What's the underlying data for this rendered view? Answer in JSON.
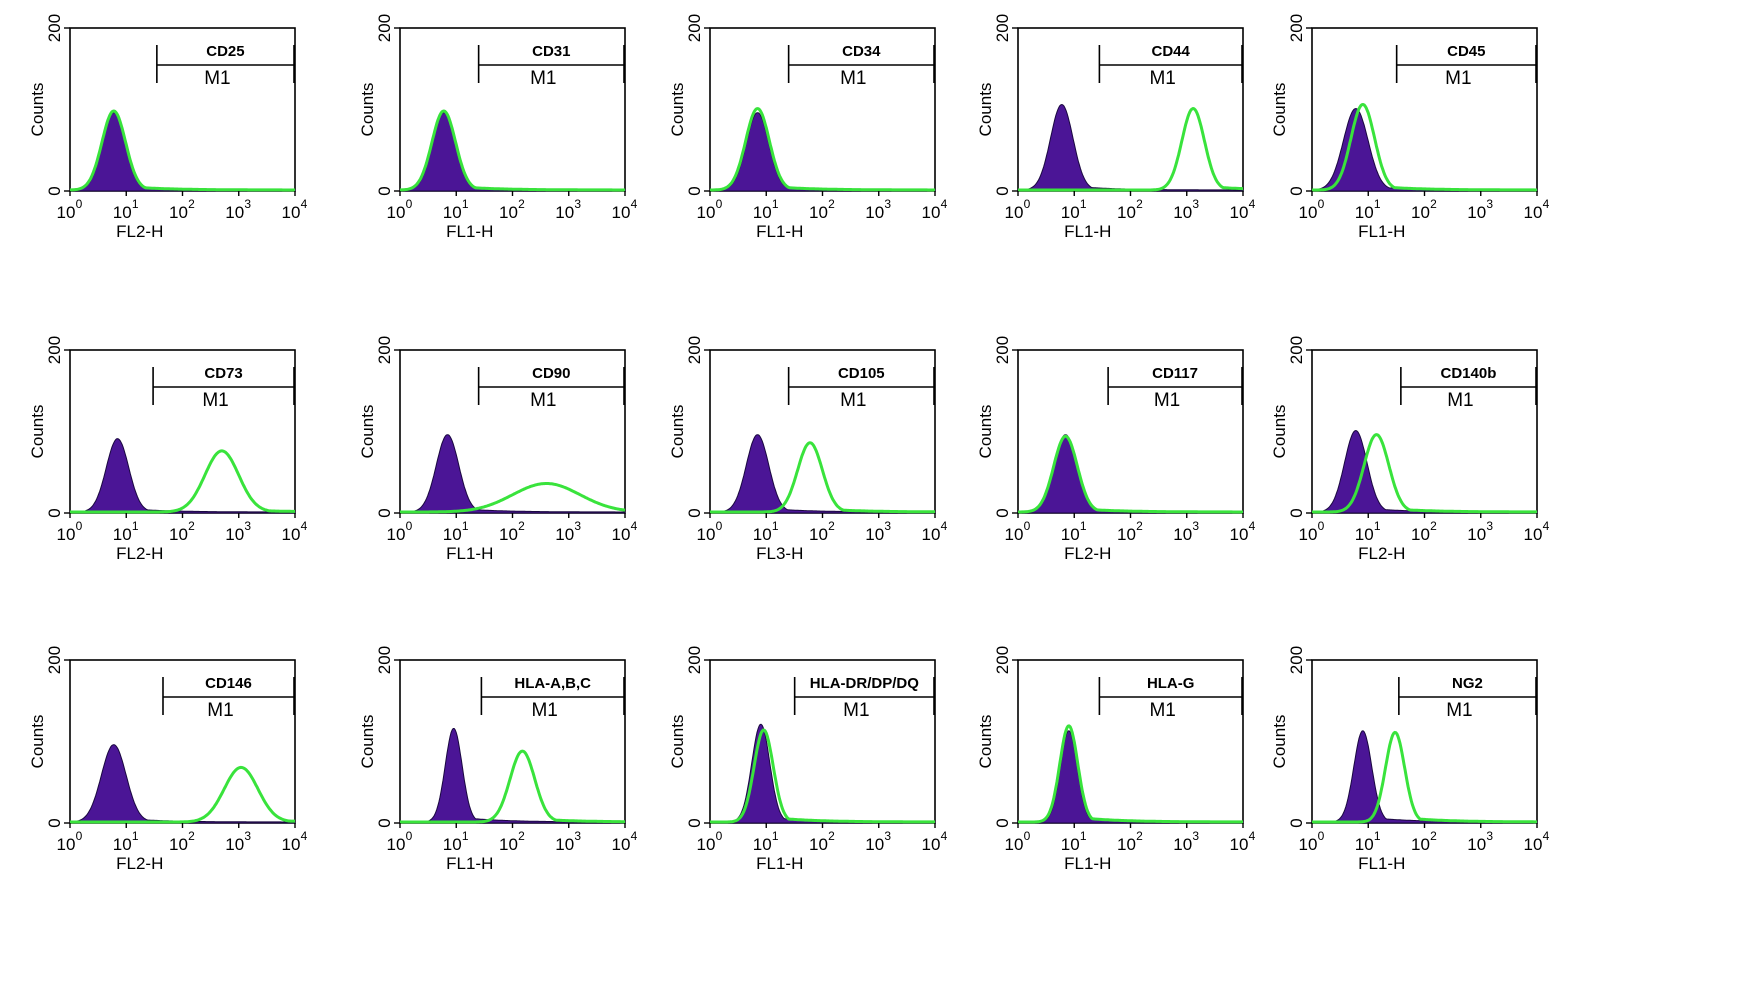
{
  "chart_data": [
    {
      "type": "histogram",
      "marker": "CD25",
      "gate": "M1",
      "xlabel": "FL2-H",
      "ylabel": "Counts",
      "xscale": "log",
      "xlim": [
        1,
        10000
      ],
      "ylim": [
        0,
        200
      ],
      "yticks": [
        "0",
        "200"
      ],
      "xticks": [
        "10",
        "10",
        "10",
        "10",
        "10"
      ],
      "xtick_exponents": [
        "0",
        "1",
        "2",
        "3",
        "4"
      ],
      "gate_range": [
        35,
        10000
      ],
      "control": {
        "peak_x": 6,
        "peak_count": 95,
        "log_sd": 0.2
      },
      "stained": {
        "peak_x": 6,
        "peak_count": 97,
        "log_sd": 0.21,
        "shoulder_x": null,
        "shoulder_count": 0
      },
      "colors": {
        "control": "#4b1596",
        "stained": "#39e33c"
      }
    },
    {
      "type": "histogram",
      "marker": "CD31",
      "gate": "M1",
      "xlabel": "FL1-H",
      "ylabel": "Counts",
      "xscale": "log",
      "xlim": [
        1,
        10000
      ],
      "ylim": [
        0,
        200
      ],
      "yticks": [
        "0",
        "200"
      ],
      "xticks": [
        "10",
        "10",
        "10",
        "10",
        "10"
      ],
      "xtick_exponents": [
        "0",
        "1",
        "2",
        "3",
        "4"
      ],
      "gate_range": [
        25,
        10000
      ],
      "control": {
        "peak_x": 6,
        "peak_count": 95,
        "log_sd": 0.2
      },
      "stained": {
        "peak_x": 6,
        "peak_count": 97,
        "log_sd": 0.21,
        "shoulder_x": null,
        "shoulder_count": 0
      },
      "colors": {
        "control": "#4b1596",
        "stained": "#39e33c"
      }
    },
    {
      "type": "histogram",
      "marker": "CD34",
      "gate": "M1",
      "xlabel": "FL1-H",
      "ylabel": "Counts",
      "xscale": "log",
      "xlim": [
        1,
        10000
      ],
      "ylim": [
        0,
        200
      ],
      "yticks": [
        "0",
        "200"
      ],
      "xticks": [
        "10",
        "10",
        "10",
        "10",
        "10"
      ],
      "xtick_exponents": [
        "0",
        "1",
        "2",
        "3",
        "4"
      ],
      "gate_range": [
        25,
        10000
      ],
      "control": {
        "peak_x": 7,
        "peak_count": 95,
        "log_sd": 0.2
      },
      "stained": {
        "peak_x": 7,
        "peak_count": 100,
        "log_sd": 0.21,
        "shoulder_x": null,
        "shoulder_count": 0
      },
      "colors": {
        "control": "#4b1596",
        "stained": "#39e33c"
      }
    },
    {
      "type": "histogram",
      "marker": "CD44",
      "gate": "M1",
      "xlabel": "FL1-H",
      "ylabel": "Counts",
      "xscale": "log",
      "xlim": [
        1,
        10000
      ],
      "ylim": [
        0,
        200
      ],
      "yticks": [
        "0",
        "200"
      ],
      "xticks": [
        "10",
        "10",
        "10",
        "10",
        "10"
      ],
      "xtick_exponents": [
        "0",
        "1",
        "2",
        "3",
        "4"
      ],
      "gate_range": [
        28,
        10000
      ],
      "control": {
        "peak_x": 6,
        "peak_count": 105,
        "log_sd": 0.2
      },
      "stained": {
        "peak_x": 1300,
        "peak_count": 100,
        "log_sd": 0.2,
        "shoulder_x": null,
        "shoulder_count": 0
      },
      "colors": {
        "control": "#4b1596",
        "stained": "#39e33c"
      }
    },
    {
      "type": "histogram",
      "marker": "CD45",
      "gate": "M1",
      "xlabel": "FL1-H",
      "ylabel": "Counts",
      "xscale": "log",
      "xlim": [
        1,
        10000
      ],
      "ylim": [
        0,
        200
      ],
      "yticks": [
        "0",
        "200"
      ],
      "xticks": [
        "10",
        "10",
        "10",
        "10",
        "10"
      ],
      "xtick_exponents": [
        "0",
        "1",
        "2",
        "3",
        "4"
      ],
      "gate_range": [
        32,
        10000
      ],
      "control": {
        "peak_x": 6,
        "peak_count": 100,
        "log_sd": 0.22
      },
      "stained": {
        "peak_x": 8,
        "peak_count": 105,
        "log_sd": 0.21,
        "shoulder_x": null,
        "shoulder_count": 0
      },
      "colors": {
        "control": "#4b1596",
        "stained": "#39e33c"
      }
    },
    {
      "type": "histogram",
      "marker": "CD73",
      "gate": "M1",
      "xlabel": "FL2-H",
      "ylabel": "Counts",
      "xscale": "log",
      "xlim": [
        1,
        10000
      ],
      "ylim": [
        0,
        200
      ],
      "yticks": [
        "0",
        "200"
      ],
      "xticks": [
        "10",
        "10",
        "10",
        "10",
        "10"
      ],
      "xtick_exponents": [
        "0",
        "1",
        "2",
        "3",
        "4"
      ],
      "gate_range": [
        30,
        10000
      ],
      "control": {
        "peak_x": 7,
        "peak_count": 90,
        "log_sd": 0.2
      },
      "stained": {
        "peak_x": 500,
        "peak_count": 75,
        "log_sd": 0.3,
        "shoulder_x": null,
        "shoulder_count": 0
      },
      "colors": {
        "control": "#4b1596",
        "stained": "#39e33c"
      }
    },
    {
      "type": "histogram",
      "marker": "CD90",
      "gate": "M1",
      "xlabel": "FL1-H",
      "ylabel": "Counts",
      "xscale": "log",
      "xlim": [
        1,
        10000
      ],
      "ylim": [
        0,
        200
      ],
      "yticks": [
        "0",
        "200"
      ],
      "xticks": [
        "10",
        "10",
        "10",
        "10",
        "10"
      ],
      "xtick_exponents": [
        "0",
        "1",
        "2",
        "3",
        "4"
      ],
      "gate_range": [
        25,
        10000
      ],
      "control": {
        "peak_x": 7,
        "peak_count": 95,
        "log_sd": 0.2
      },
      "stained": {
        "peak_x": 400,
        "peak_count": 35,
        "log_sd": 0.6,
        "shoulder_x": null,
        "shoulder_count": 0
      },
      "colors": {
        "control": "#4b1596",
        "stained": "#39e33c"
      }
    },
    {
      "type": "histogram",
      "marker": "CD105",
      "gate": "M1",
      "xlabel": "FL3-H",
      "ylabel": "Counts",
      "xscale": "log",
      "xlim": [
        1,
        10000
      ],
      "ylim": [
        0,
        200
      ],
      "yticks": [
        "0",
        "200"
      ],
      "xticks": [
        "10",
        "10",
        "10",
        "10",
        "10"
      ],
      "xtick_exponents": [
        "0",
        "1",
        "2",
        "3",
        "4"
      ],
      "gate_range": [
        25,
        10000
      ],
      "control": {
        "peak_x": 7,
        "peak_count": 95,
        "log_sd": 0.2
      },
      "stained": {
        "peak_x": 60,
        "peak_count": 85,
        "log_sd": 0.22,
        "shoulder_x": null,
        "shoulder_count": 0
      },
      "colors": {
        "control": "#4b1596",
        "stained": "#39e33c"
      }
    },
    {
      "type": "histogram",
      "marker": "CD117",
      "gate": "M1",
      "xlabel": "FL2-H",
      "ylabel": "Counts",
      "xscale": "log",
      "xlim": [
        1,
        10000
      ],
      "ylim": [
        0,
        200
      ],
      "yticks": [
        "0",
        "200"
      ],
      "xticks": [
        "10",
        "10",
        "10",
        "10",
        "10"
      ],
      "xtick_exponents": [
        "0",
        "1",
        "2",
        "3",
        "4"
      ],
      "gate_range": [
        40,
        10000
      ],
      "control": {
        "peak_x": 7,
        "peak_count": 95,
        "log_sd": 0.2
      },
      "stained": {
        "peak_x": 7,
        "peak_count": 93,
        "log_sd": 0.21,
        "shoulder_x": null,
        "shoulder_count": 0
      },
      "colors": {
        "control": "#4b1596",
        "stained": "#39e33c"
      }
    },
    {
      "type": "histogram",
      "marker": "CD140b",
      "gate": "M1",
      "xlabel": "FL2-H",
      "ylabel": "Counts",
      "xscale": "log",
      "xlim": [
        1,
        10000
      ],
      "ylim": [
        0,
        200
      ],
      "yticks": [
        "0",
        "200"
      ],
      "xticks": [
        "10",
        "10",
        "10",
        "10",
        "10"
      ],
      "xtick_exponents": [
        "0",
        "1",
        "2",
        "3",
        "4"
      ],
      "gate_range": [
        38,
        10000
      ],
      "control": {
        "peak_x": 6,
        "peak_count": 100,
        "log_sd": 0.2
      },
      "stained": {
        "peak_x": 14,
        "peak_count": 95,
        "log_sd": 0.22,
        "shoulder_x": null,
        "shoulder_count": 0
      },
      "colors": {
        "control": "#4b1596",
        "stained": "#39e33c"
      }
    },
    {
      "type": "histogram",
      "marker": "CD146",
      "gate": "M1",
      "xlabel": "FL2-H",
      "ylabel": "Counts",
      "xscale": "log",
      "xlim": [
        1,
        10000
      ],
      "ylim": [
        0,
        200
      ],
      "yticks": [
        "0",
        "200"
      ],
      "xticks": [
        "10",
        "10",
        "10",
        "10",
        "10"
      ],
      "xtick_exponents": [
        "0",
        "1",
        "2",
        "3",
        "4"
      ],
      "gate_range": [
        45,
        10000
      ],
      "control": {
        "peak_x": 6,
        "peak_count": 95,
        "log_sd": 0.22
      },
      "stained": {
        "peak_x": 1100,
        "peak_count": 67,
        "log_sd": 0.3,
        "shoulder_x": null,
        "shoulder_count": 0
      },
      "colors": {
        "control": "#4b1596",
        "stained": "#39e33c"
      }
    },
    {
      "type": "histogram",
      "marker": "HLA-A,B,C",
      "gate": "M1",
      "xlabel": "FL1-H",
      "ylabel": "Counts",
      "xscale": "log",
      "xlim": [
        1,
        10000
      ],
      "ylim": [
        0,
        200
      ],
      "yticks": [
        "0",
        "200"
      ],
      "xticks": [
        "10",
        "10",
        "10",
        "10",
        "10"
      ],
      "xtick_exponents": [
        "0",
        "1",
        "2",
        "3",
        "4"
      ],
      "gate_range": [
        28,
        10000
      ],
      "control": {
        "peak_x": 9,
        "peak_count": 115,
        "log_sd": 0.15
      },
      "stained": {
        "peak_x": 150,
        "peak_count": 87,
        "log_sd": 0.22,
        "shoulder_x": null,
        "shoulder_count": 0
      },
      "colors": {
        "control": "#4b1596",
        "stained": "#39e33c"
      }
    },
    {
      "type": "histogram",
      "marker": "HLA-DR/DP/DQ",
      "gate": "M1",
      "xlabel": "FL1-H",
      "ylabel": "Counts",
      "xscale": "log",
      "xlim": [
        1,
        10000
      ],
      "ylim": [
        0,
        200
      ],
      "yticks": [
        "0",
        "200"
      ],
      "xticks": [
        "10",
        "10",
        "10",
        "10",
        "10"
      ],
      "xtick_exponents": [
        "0",
        "1",
        "2",
        "3",
        "4"
      ],
      "gate_range": [
        32,
        10000
      ],
      "control": {
        "peak_x": 8,
        "peak_count": 120,
        "log_sd": 0.16
      },
      "stained": {
        "peak_x": 9,
        "peak_count": 113,
        "log_sd": 0.17,
        "shoulder_x": null,
        "shoulder_count": 0
      },
      "colors": {
        "control": "#4b1596",
        "stained": "#39e33c"
      }
    },
    {
      "type": "histogram",
      "marker": "HLA-G",
      "gate": "M1",
      "xlabel": "FL1-H",
      "ylabel": "Counts",
      "xscale": "log",
      "xlim": [
        1,
        10000
      ],
      "ylim": [
        0,
        200
      ],
      "yticks": [
        "0",
        "200"
      ],
      "xticks": [
        "10",
        "10",
        "10",
        "10",
        "10"
      ],
      "xtick_exponents": [
        "0",
        "1",
        "2",
        "3",
        "4"
      ],
      "gate_range": [
        28,
        10000
      ],
      "control": {
        "peak_x": 8,
        "peak_count": 112,
        "log_sd": 0.15
      },
      "stained": {
        "peak_x": 8,
        "peak_count": 118,
        "log_sd": 0.16,
        "shoulder_x": null,
        "shoulder_count": 0
      },
      "colors": {
        "control": "#4b1596",
        "stained": "#39e33c"
      }
    },
    {
      "type": "histogram",
      "marker": "NG2",
      "gate": "M1",
      "xlabel": "FL1-H",
      "ylabel": "Counts",
      "xscale": "log",
      "xlim": [
        1,
        10000
      ],
      "ylim": [
        0,
        200
      ],
      "yticks": [
        "0",
        "200"
      ],
      "xticks": [
        "10",
        "10",
        "10",
        "10",
        "10"
      ],
      "xtick_exponents": [
        "0",
        "1",
        "2",
        "3",
        "4"
      ],
      "gate_range": [
        35,
        10000
      ],
      "control": {
        "peak_x": 8,
        "peak_count": 112,
        "log_sd": 0.16
      },
      "stained": {
        "peak_x": 30,
        "peak_count": 110,
        "log_sd": 0.17,
        "shoulder_x": null,
        "shoulder_count": 0
      },
      "colors": {
        "control": "#4b1596",
        "stained": "#39e33c"
      }
    }
  ]
}
